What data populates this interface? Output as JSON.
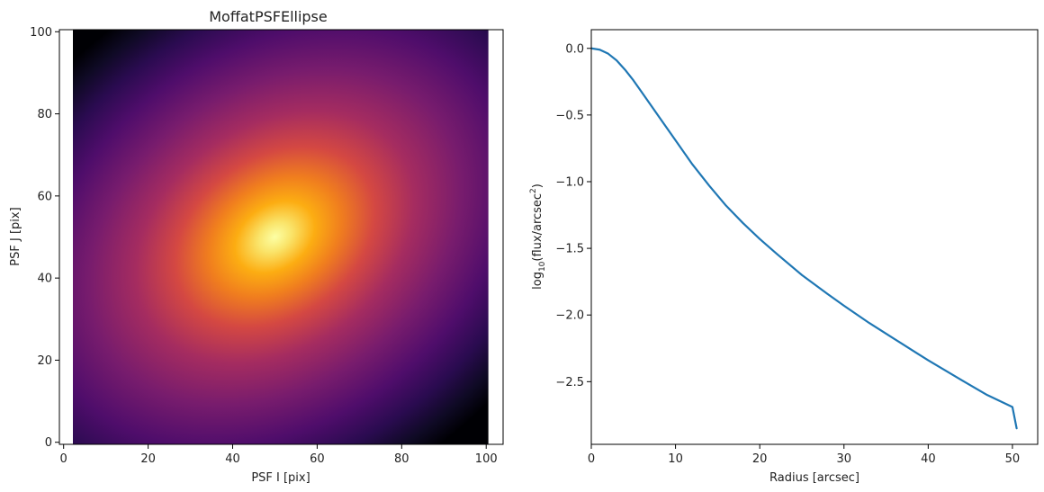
{
  "chart_data": [
    {
      "type": "heatmap",
      "title": "MoffatPSFEllipse",
      "xlabel": "PSF I [pix]",
      "ylabel": "PSF J [pix]",
      "xlim": [
        -1,
        104
      ],
      "ylim": [
        -0.5,
        100.5
      ],
      "xticks": [
        "0",
        "20",
        "40",
        "60",
        "80",
        "100"
      ],
      "yticks": [
        "0",
        "20",
        "40",
        "60",
        "80",
        "100"
      ],
      "grid": false,
      "colormap": "inferno",
      "center": [
        50,
        50
      ],
      "image_extent": [
        -0.5,
        100.5,
        -0.5,
        100.5
      ]
    },
    {
      "type": "line",
      "xlabel": "Radius [arcsec]",
      "ylabel": "log10(flux/arcsec2)",
      "ylabel_parts": {
        "prefix": "log",
        "sub": "10",
        "mid": "(flux/arcsec",
        "sup": "2",
        "suffix": ")"
      },
      "xlim": [
        0,
        53
      ],
      "ylim": [
        -2.97,
        0.14
      ],
      "xticks": [
        "0",
        "10",
        "20",
        "30",
        "40",
        "50"
      ],
      "yticks": [
        "0.0",
        "−0.5",
        "−1.0",
        "−1.5",
        "−2.0",
        "−2.5"
      ],
      "grid": false,
      "color": "#1f77b4",
      "series": [
        {
          "x": [
            0,
            1,
            2,
            3,
            4,
            5,
            6,
            8,
            10,
            12,
            14,
            16,
            18,
            20,
            22,
            25,
            28,
            30,
            33,
            36,
            40,
            44,
            47,
            50,
            50.5
          ],
          "values": [
            0.0,
            -0.01,
            -0.04,
            -0.09,
            -0.16,
            -0.24,
            -0.33,
            -0.51,
            -0.69,
            -0.87,
            -1.03,
            -1.18,
            -1.31,
            -1.43,
            -1.54,
            -1.7,
            -1.84,
            -1.93,
            -2.06,
            -2.18,
            -2.34,
            -2.49,
            -2.6,
            -2.69,
            -2.85
          ]
        }
      ]
    }
  ]
}
